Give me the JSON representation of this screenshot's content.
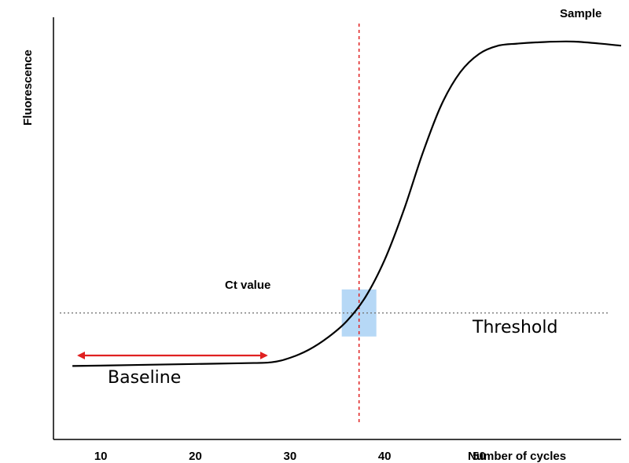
{
  "chart_data": {
    "type": "line",
    "title": "",
    "xlabel": "Number of cycles",
    "ylabel": "Fluorescence",
    "xlim": [
      5,
      65
    ],
    "ylim": [
      0,
      1
    ],
    "xticks": [
      10,
      20,
      30,
      40,
      50
    ],
    "grid": false,
    "series": [
      {
        "name": "Sample",
        "color": "#000000",
        "x": [
          7,
          10,
          15,
          20,
          25,
          28,
          30,
          32,
          34,
          36,
          38,
          40,
          42,
          44,
          46,
          48,
          50,
          52,
          54,
          56,
          60,
          65
        ],
        "y": [
          0.18,
          0.181,
          0.183,
          0.185,
          0.187,
          0.189,
          0.2,
          0.22,
          0.25,
          0.29,
          0.35,
          0.44,
          0.56,
          0.7,
          0.82,
          0.9,
          0.945,
          0.965,
          0.97,
          0.973,
          0.975,
          0.965
        ]
      }
    ],
    "threshold": {
      "label": "Threshold",
      "y": 0.31,
      "style": "dotted",
      "color": "#777777"
    },
    "ct": {
      "label": "Ct value",
      "x": 37.3,
      "line_color": "#e02020",
      "highlight_color": "#a9d1f5"
    },
    "baseline": {
      "label": "Baseline",
      "x_start": 6.5,
      "x_end": 28.5,
      "color": "#e02020"
    }
  }
}
